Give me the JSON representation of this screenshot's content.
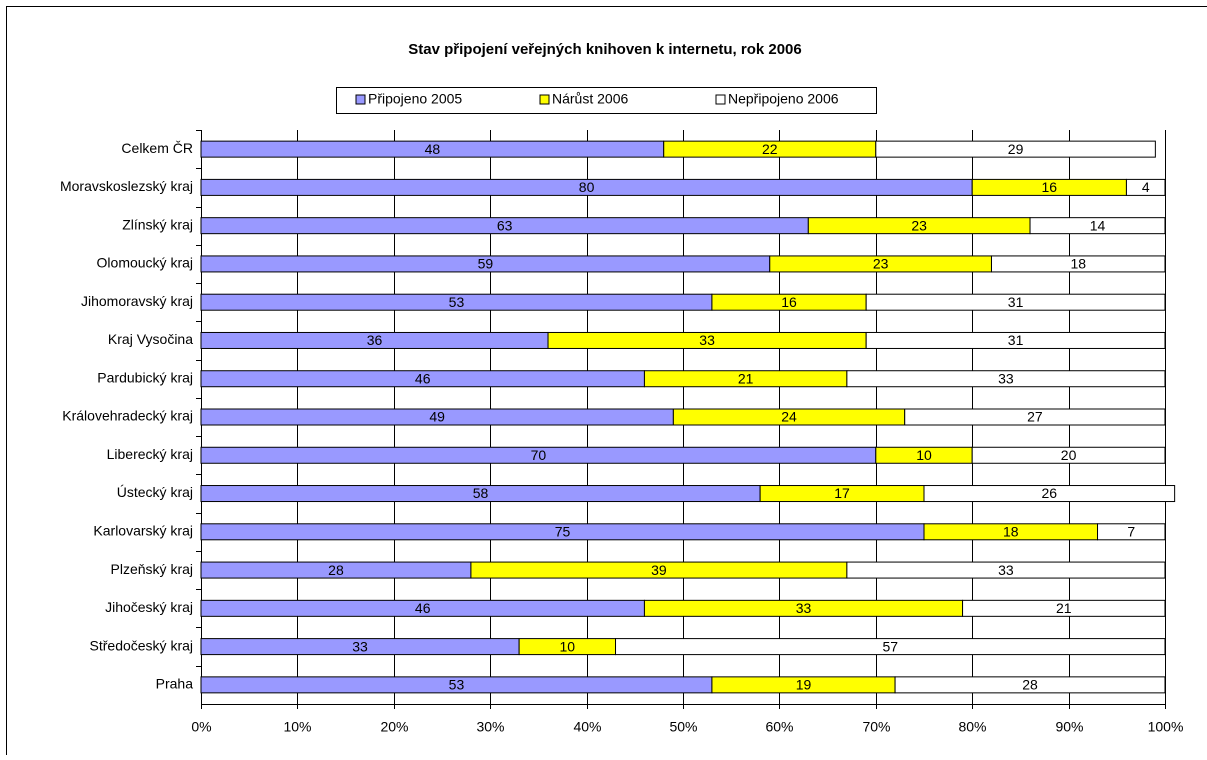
{
  "chart_data": {
    "type": "stacked_barh",
    "title": "Stav připojení veřejných knihoven k internetu, rok 2006",
    "categories": [
      "Celkem  ČR",
      "Moravskoslezský kraj",
      "Zlínský kraj",
      "Olomoucký kraj",
      "Jihomoravský kraj",
      "Kraj Vysočina",
      "Pardubický kraj",
      "Královehradecký kraj",
      "Liberecký kraj",
      "Ústecký kraj",
      "Karlovarský kraj",
      "Plzeňský kraj",
      "Jihočeský kraj",
      "Středočeský kraj",
      "Praha"
    ],
    "series": [
      {
        "name": "Připojeno 2005",
        "color": "#9999ff",
        "values": [
          48,
          80,
          63,
          59,
          53,
          36,
          46,
          49,
          70,
          58,
          75,
          28,
          46,
          33,
          53
        ]
      },
      {
        "name": "Nárůst 2006",
        "color": "#ffff00",
        "values": [
          22,
          16,
          23,
          23,
          16,
          33,
          21,
          24,
          10,
          17,
          18,
          39,
          33,
          10,
          19
        ]
      },
      {
        "name": "Nepřipojeno 2006",
        "color": "#ffffff",
        "values": [
          29,
          4,
          14,
          18,
          31,
          31,
          33,
          27,
          20,
          26,
          7,
          33,
          21,
          57,
          28
        ]
      }
    ],
    "xlim": [
      0,
      100
    ],
    "xticks": [
      {
        "value": 0,
        "label": "0%"
      },
      {
        "value": 10,
        "label": "10%"
      },
      {
        "value": 20,
        "label": "20%"
      },
      {
        "value": 30,
        "label": "30%"
      },
      {
        "value": 40,
        "label": "40%"
      },
      {
        "value": 50,
        "label": "50%"
      },
      {
        "value": 60,
        "label": "60%"
      },
      {
        "value": 70,
        "label": "70%"
      },
      {
        "value": 80,
        "label": "80%"
      },
      {
        "value": 90,
        "label": "90%"
      },
      {
        "value": 100,
        "label": "100%"
      }
    ],
    "grid": true,
    "legend": "top"
  }
}
